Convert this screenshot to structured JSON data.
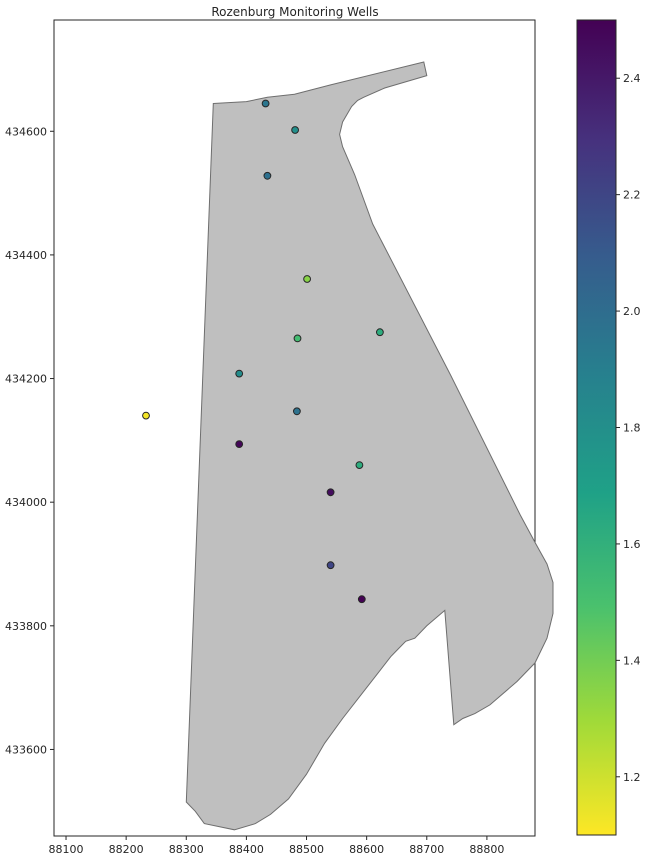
{
  "title": "Rozenburg Monitoring Wells",
  "colors": {
    "polygon_fill": "#bfbfbf",
    "polygon_edge": "#6e6e6e",
    "marker_edge": "#262626",
    "axis": "#262626",
    "colormap": "viridis (reversed)"
  },
  "chart_data": {
    "type": "scatter",
    "title": "Rozenburg Monitoring Wells",
    "xlim": [
      88080,
      88880
    ],
    "ylim": [
      433460,
      434780
    ],
    "xticks": [
      88100,
      88200,
      88300,
      88400,
      88500,
      88600,
      88700,
      88800
    ],
    "yticks": [
      433600,
      433800,
      434000,
      434200,
      434400,
      434600
    ],
    "xtick_labels": [
      "88100",
      "88200",
      "88300",
      "88400",
      "88500",
      "88600",
      "88700",
      "88800"
    ],
    "ytick_labels": [
      "433600",
      "433800",
      "434000",
      "434200",
      "434400",
      "434600"
    ],
    "grid": false,
    "boundary_polygon": [
      [
        88345,
        434645
      ],
      [
        88400,
        434648
      ],
      [
        88435,
        434655
      ],
      [
        88480,
        434660
      ],
      [
        88540,
        434675
      ],
      [
        88695,
        434712
      ],
      [
        88700,
        434690
      ],
      [
        88630,
        434670
      ],
      [
        88595,
        434655
      ],
      [
        88585,
        434650
      ],
      [
        88575,
        434640
      ],
      [
        88560,
        434615
      ],
      [
        88555,
        434595
      ],
      [
        88560,
        434575
      ],
      [
        88580,
        434530
      ],
      [
        88610,
        434450
      ],
      [
        88740,
        434205
      ],
      [
        88855,
        433980
      ],
      [
        88880,
        433935
      ],
      [
        88900,
        433900
      ],
      [
        88910,
        433870
      ],
      [
        88910,
        433820
      ],
      [
        88900,
        433780
      ],
      [
        88880,
        433740
      ],
      [
        88850,
        433710
      ],
      [
        88805,
        433672
      ],
      [
        88780,
        433658
      ],
      [
        88760,
        433650
      ],
      [
        88745,
        433640
      ],
      [
        88730,
        433825
      ],
      [
        88700,
        433800
      ],
      [
        88680,
        433780
      ],
      [
        88665,
        433775
      ],
      [
        88650,
        433760
      ],
      [
        88640,
        433750
      ],
      [
        88600,
        433700
      ],
      [
        88560,
        433650
      ],
      [
        88530,
        433610
      ],
      [
        88500,
        433560
      ],
      [
        88470,
        433520
      ],
      [
        88440,
        433495
      ],
      [
        88415,
        433480
      ],
      [
        88380,
        433470
      ],
      [
        88330,
        433480
      ],
      [
        88315,
        433500
      ],
      [
        88300,
        433515
      ]
    ],
    "colorbar": {
      "min": 1.1,
      "max": 2.5,
      "ticks": [
        1.2,
        1.4,
        1.6,
        1.8,
        2.0,
        2.2,
        2.4
      ],
      "tick_labels": [
        "1.2",
        "1.4",
        "1.6",
        "1.8",
        "2.0",
        "2.2",
        "2.4"
      ],
      "reversed": true
    },
    "points": [
      {
        "x": 88432,
        "y": 434645,
        "value": 1.95
      },
      {
        "x": 88481,
        "y": 434602,
        "value": 1.8
      },
      {
        "x": 88435,
        "y": 434528,
        "value": 1.98
      },
      {
        "x": 88501,
        "y": 434361,
        "value": 1.35
      },
      {
        "x": 88485,
        "y": 434265,
        "value": 1.52
      },
      {
        "x": 88622,
        "y": 434275,
        "value": 1.62
      },
      {
        "x": 88388,
        "y": 434208,
        "value": 1.82
      },
      {
        "x": 88484,
        "y": 434147,
        "value": 1.97
      },
      {
        "x": 88233,
        "y": 434140,
        "value": 1.12
      },
      {
        "x": 88388,
        "y": 434094,
        "value": 2.48
      },
      {
        "x": 88588,
        "y": 434060,
        "value": 1.62
      },
      {
        "x": 88540,
        "y": 434016,
        "value": 2.45
      },
      {
        "x": 88540,
        "y": 433898,
        "value": 2.2
      },
      {
        "x": 88592,
        "y": 433843,
        "value": 2.5
      }
    ]
  }
}
